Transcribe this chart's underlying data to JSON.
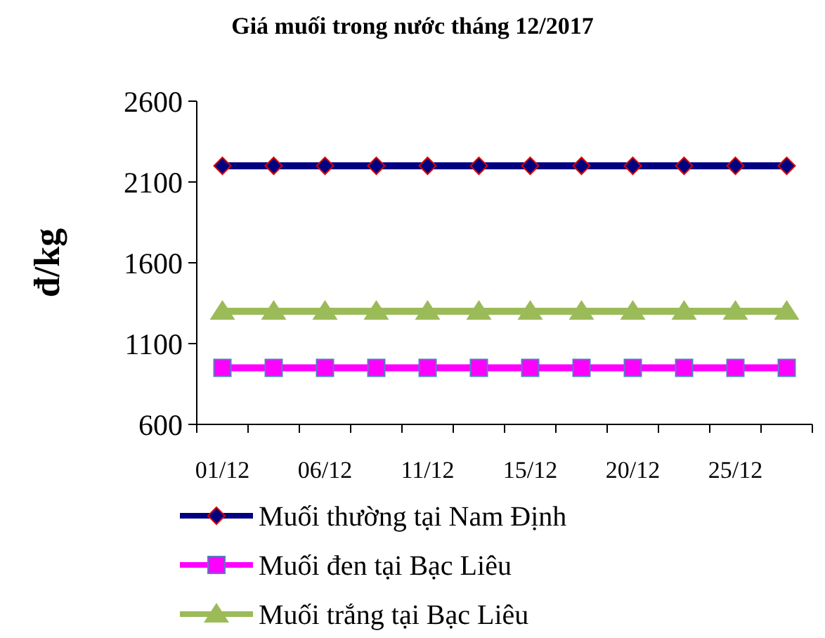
{
  "chart_data": {
    "type": "line",
    "title": "Giá muối trong nước tháng 12/2017",
    "ylabel": "đ/kg",
    "categories": [
      "01/12",
      null,
      "06/12",
      null,
      "11/12",
      null,
      "15/12",
      null,
      "20/12",
      null,
      "25/12",
      null
    ],
    "ylim": [
      600,
      2600
    ],
    "yticks": [
      600,
      1100,
      1600,
      2100,
      2600
    ],
    "grid": false,
    "legend": "bottom",
    "line_style": "solid",
    "series": [
      {
        "name": "Muối thường tại Nam Định",
        "color": "#000080",
        "marker": "diamond",
        "values": [
          2200,
          2200,
          2200,
          2200,
          2200,
          2200,
          2200,
          2200,
          2200,
          2200,
          2200,
          2200
        ]
      },
      {
        "name": "Muối đen tại Bạc Liêu",
        "color": "#ff00ff",
        "marker": "square",
        "values": [
          950,
          950,
          950,
          950,
          950,
          950,
          950,
          950,
          950,
          950,
          950,
          950
        ]
      },
      {
        "name": "Muối trắng tại Bạc Liêu",
        "color": "#9bbb59",
        "marker": "triangle",
        "values": [
          1300,
          1300,
          1300,
          1300,
          1300,
          1300,
          1300,
          1300,
          1300,
          1300,
          1300,
          1300
        ]
      }
    ]
  }
}
